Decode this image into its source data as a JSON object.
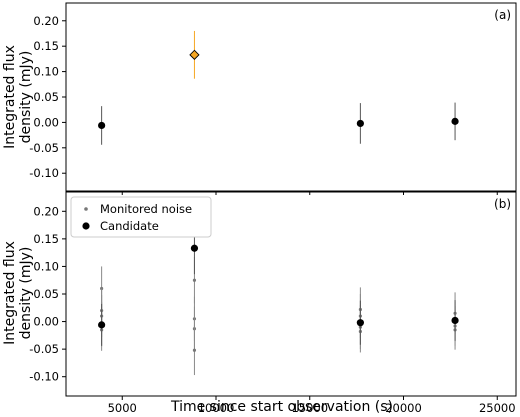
{
  "chart_data": {
    "type": "scatter",
    "xlabel": "Time since start observation (s)",
    "ylabel_line1": "Integrated flux",
    "ylabel_line2": "density (mJy)",
    "xlim": [
      2000,
      26000
    ],
    "ylim": [
      -0.135,
      0.235
    ],
    "x_ticks": [
      5000,
      10000,
      15000,
      20000,
      25000
    ],
    "y_ticks": [
      -0.1,
      -0.05,
      0.0,
      0.05,
      0.1,
      0.15,
      0.2
    ],
    "panels": [
      {
        "tag": "(a)",
        "series": [
          {
            "marker": "circle",
            "color": "#000000",
            "points": [
              {
                "x": 3900,
                "y": -0.006,
                "err": 0.038
              },
              {
                "x": 17700,
                "y": -0.002,
                "err": 0.04
              },
              {
                "x": 22750,
                "y": 0.002,
                "err": 0.037
              }
            ]
          },
          {
            "marker": "diamond",
            "color": "#f5a623",
            "edge": "#000000",
            "err_color": "#f5a623",
            "points": [
              {
                "x": 8850,
                "y": 0.133,
                "err": 0.047
              }
            ]
          }
        ]
      },
      {
        "tag": "(b)",
        "legend": {
          "position": "top-left",
          "entries": [
            {
              "label": "Monitored noise",
              "marker": "small-circle",
              "color": "#777777"
            },
            {
              "label": "Candidate",
              "marker": "circle",
              "color": "#000000"
            }
          ]
        },
        "series": [
          {
            "name": "Monitored noise",
            "marker": "small-circle",
            "color": "#777777",
            "points": [
              {
                "x": 3900,
                "y": 0.06,
                "err": 0.04
              },
              {
                "x": 3900,
                "y": 0.02,
                "err": 0.04
              },
              {
                "x": 3900,
                "y": 0.01,
                "err": 0.038
              },
              {
                "x": 3900,
                "y": -0.005,
                "err": 0.04
              },
              {
                "x": 3900,
                "y": -0.015,
                "err": 0.038
              },
              {
                "x": 8850,
                "y": 0.075,
                "err": 0.042
              },
              {
                "x": 8850,
                "y": 0.005,
                "err": 0.04
              },
              {
                "x": 8850,
                "y": -0.013,
                "err": 0.04
              },
              {
                "x": 8850,
                "y": -0.052,
                "err": 0.045
              },
              {
                "x": 17700,
                "y": 0.022,
                "err": 0.04
              },
              {
                "x": 17700,
                "y": 0.01,
                "err": 0.04
              },
              {
                "x": 17700,
                "y": -0.01,
                "err": 0.04
              },
              {
                "x": 17700,
                "y": -0.018,
                "err": 0.038
              },
              {
                "x": 22750,
                "y": 0.015,
                "err": 0.038
              },
              {
                "x": 22750,
                "y": 0.0,
                "err": 0.036
              },
              {
                "x": 22750,
                "y": -0.008,
                "err": 0.036
              },
              {
                "x": 22750,
                "y": -0.015,
                "err": 0.036
              }
            ]
          },
          {
            "name": "Candidate",
            "marker": "circle",
            "color": "#000000",
            "points": [
              {
                "x": 3900,
                "y": -0.006,
                "err": 0.038
              },
              {
                "x": 8850,
                "y": 0.133,
                "err": 0.047
              },
              {
                "x": 17700,
                "y": -0.002,
                "err": 0.04
              },
              {
                "x": 22750,
                "y": 0.002,
                "err": 0.037
              }
            ]
          }
        ]
      }
    ]
  }
}
